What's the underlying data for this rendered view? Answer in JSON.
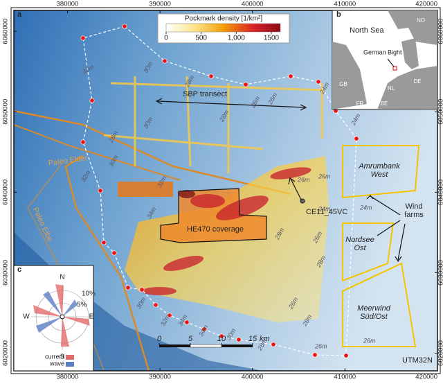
{
  "panel_labels": [
    "a",
    "b",
    "c"
  ],
  "map": {
    "xlim": [
      374200,
      420000
    ],
    "ylim": [
      6017800,
      6062600
    ],
    "xticks": [
      380000,
      390000,
      400000,
      410000,
      420000
    ],
    "yticks": [
      6020000,
      6030000,
      6040000,
      6050000,
      6060000
    ],
    "crs": "UTM32N"
  },
  "legend": {
    "title": "Pockmark density [1/km²]",
    "lim": [
      0,
      1500
    ],
    "ticks": [
      0,
      500,
      {
        "value": 1000,
        "label": "1,000"
      },
      1500
    ],
    "colors": [
      "#ffffff",
      "#fde68a",
      "#f59e0b",
      "#dc2626",
      "#8b0a1a"
    ]
  },
  "annotations": {
    "sbp": "SBP transect",
    "paleo_elder": "Paleo Elder",
    "paleo_elbe": "Paleo Elbe",
    "coverage": "HE470 coverage",
    "core": "CE11_45VC",
    "wind_farms": "Wind\nfarms"
  },
  "wind_farms": [
    [
      "Amrumbank",
      "West"
    ],
    [
      "Nordsee",
      "Ost"
    ],
    [
      "Meerwind",
      "Süd/Ost"
    ]
  ],
  "depths": [
    "32m",
    "30m",
    "28m",
    "26m",
    "24m",
    "30m",
    "28m",
    "26m",
    "24m",
    "32m",
    "30m",
    "32m",
    "28m",
    "26m",
    "26m",
    "24m",
    "24m",
    "28m",
    "26m",
    "28m",
    "34m",
    "30m",
    "32m",
    "34m",
    "26m",
    "28m",
    "26m",
    "34m",
    "30m",
    "28m",
    "26m"
  ],
  "scale_bar": {
    "ticks": [
      0,
      5,
      10,
      15
    ],
    "unit": "km"
  },
  "inset": {
    "sea": "North Sea",
    "bight": "German Bight",
    "countries": [
      "NO",
      "DK",
      "GB",
      "NL",
      "DE",
      "BE",
      "FR"
    ]
  },
  "rose": {
    "directions": [
      "N",
      "E",
      "S",
      "W"
    ],
    "rings": [
      "5%",
      "10%"
    ],
    "legend": [
      "current",
      "wave"
    ]
  }
}
